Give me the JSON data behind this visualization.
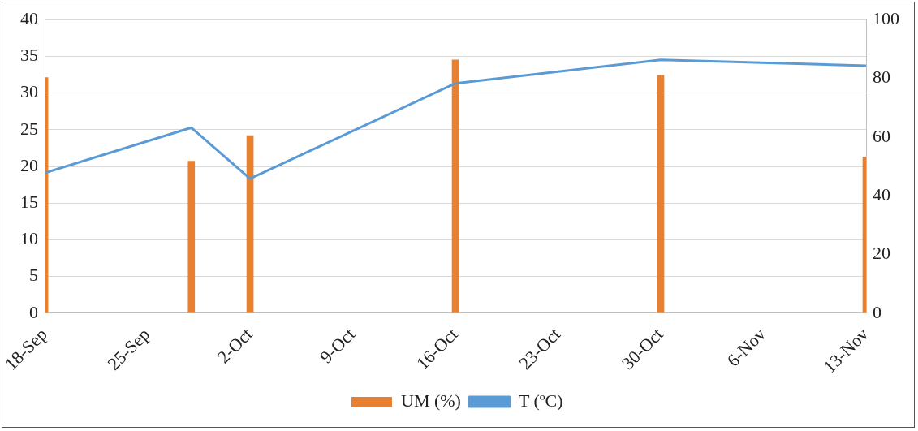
{
  "chart_data": {
    "type": "bar",
    "x": [
      "--09-18",
      "--09-28",
      "--10-02",
      "--10-16",
      "--10-30",
      "--11-13"
    ],
    "series": [
      {
        "name": "UM (%)",
        "color": "#e8802f",
        "values": [
          32.1,
          20.7,
          24.2,
          34.5,
          32.4,
          21.3
        ]
      },
      {
        "name": "T (ºC)",
        "type": "line",
        "color": "#5b9bd5",
        "axis": "y2",
        "values": [
          47.8,
          63.2,
          45.8,
          78.3,
          86.3,
          84.3
        ]
      }
    ],
    "xlim": [
      "--09-18",
      "--11-13"
    ],
    "xticks": [
      {
        "value": "--09-18",
        "label": "18-Sep"
      },
      {
        "value": "--09-25",
        "label": "25-Sep"
      },
      {
        "value": "--10-02",
        "label": "2-Oct"
      },
      {
        "value": "--10-09",
        "label": "9-Oct"
      },
      {
        "value": "--10-16",
        "label": "16-Oct"
      },
      {
        "value": "--10-23",
        "label": "23-Oct"
      },
      {
        "value": "--10-30",
        "label": "30-Oct"
      },
      {
        "value": "--11-06",
        "label": "6-Nov"
      },
      {
        "value": "--11-13",
        "label": "13-Nov"
      }
    ],
    "ylim": [
      0,
      40
    ],
    "yticks": [
      0,
      5,
      10,
      15,
      20,
      25,
      30,
      35,
      40
    ],
    "y2lim": [
      0,
      100
    ],
    "y2ticks": [
      0,
      20,
      40,
      60,
      80,
      100
    ],
    "grid": "y",
    "legend": "bottom",
    "marker": "none",
    "line_style": "solid"
  }
}
